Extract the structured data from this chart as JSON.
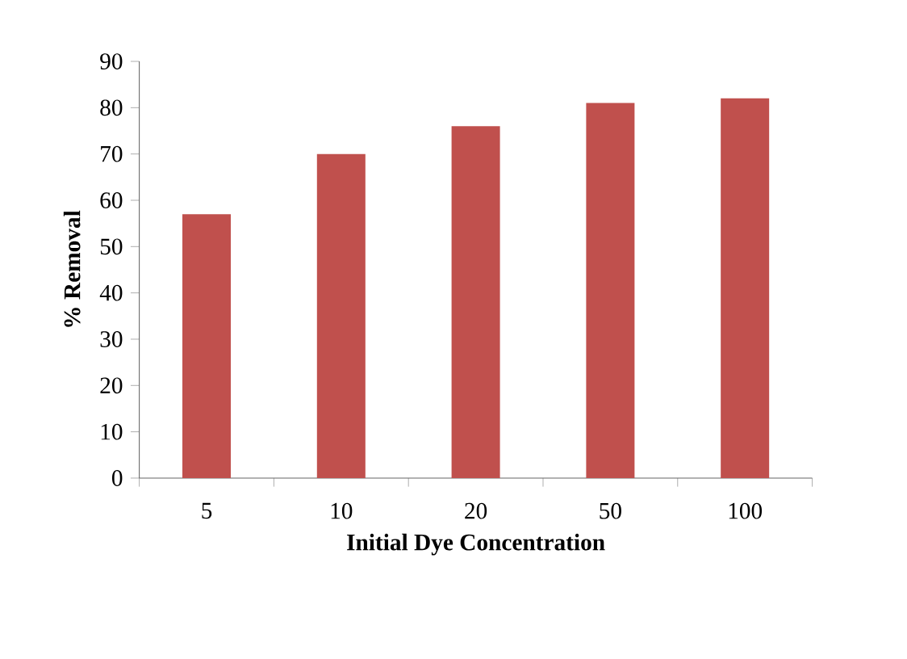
{
  "chart_data": {
    "type": "bar",
    "xlabel": "Initial Dye Concentration",
    "ylabel": "% Removal",
    "categories": [
      "5",
      "10",
      "20",
      "50",
      "100"
    ],
    "values": [
      57,
      70,
      76,
      81,
      82
    ],
    "color": "#c0504d",
    "ylim": [
      0,
      90
    ],
    "yticks": [
      0,
      10,
      20,
      30,
      40,
      50,
      60,
      70,
      80,
      90
    ],
    "grid": false
  }
}
